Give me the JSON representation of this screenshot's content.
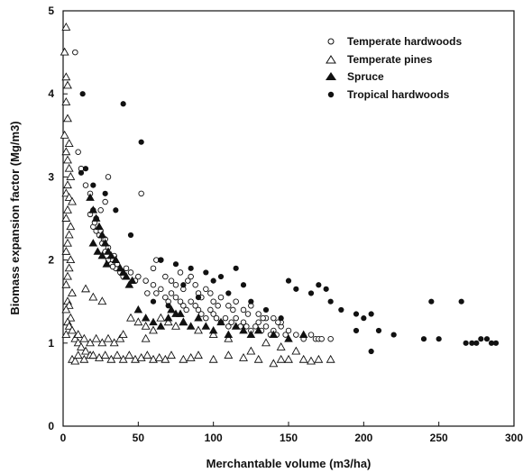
{
  "chart_data": {
    "type": "scatter",
    "xlabel": "Merchantable volume (m3/ha)",
    "ylabel": "Biomass expansion factor (Mg/m3)",
    "xlim": [
      0,
      300
    ],
    "ylim": [
      0,
      5
    ],
    "xticks": [
      "0",
      "50",
      "100",
      "150",
      "200",
      "250",
      "300"
    ],
    "yticks": [
      "0",
      "1",
      "2",
      "3",
      "4",
      "5"
    ],
    "grid": false,
    "legend_position": "top-right",
    "series": [
      {
        "name": "Temperate hardwoods",
        "marker": "open-circle",
        "points": [
          [
            8,
            4.5
          ],
          [
            30,
            3.0
          ],
          [
            52,
            2.8
          ],
          [
            10,
            3.3
          ],
          [
            12,
            3.1
          ],
          [
            15,
            2.9
          ],
          [
            18,
            2.8
          ],
          [
            20,
            2.6
          ],
          [
            22,
            2.5
          ],
          [
            25,
            2.6
          ],
          [
            28,
            2.7
          ],
          [
            20,
            2.4
          ],
          [
            24,
            2.3
          ],
          [
            26,
            2.2
          ],
          [
            28,
            2.1
          ],
          [
            30,
            2.0
          ],
          [
            32,
            1.95
          ],
          [
            35,
            1.9
          ],
          [
            38,
            1.85
          ],
          [
            40,
            1.8
          ],
          [
            22,
            2.35
          ],
          [
            27,
            2.25
          ],
          [
            33,
            1.92
          ],
          [
            45,
            1.85
          ],
          [
            50,
            1.8
          ],
          [
            55,
            1.75
          ],
          [
            60,
            1.7
          ],
          [
            62,
            1.6
          ],
          [
            65,
            1.65
          ],
          [
            68,
            1.55
          ],
          [
            70,
            1.5
          ],
          [
            72,
            1.6
          ],
          [
            75,
            1.55
          ],
          [
            78,
            1.5
          ],
          [
            80,
            1.45
          ],
          [
            82,
            1.4
          ],
          [
            85,
            1.5
          ],
          [
            88,
            1.45
          ],
          [
            90,
            1.4
          ],
          [
            92,
            1.35
          ],
          [
            95,
            1.3
          ],
          [
            98,
            1.4
          ],
          [
            100,
            1.35
          ],
          [
            102,
            1.3
          ],
          [
            105,
            1.25
          ],
          [
            108,
            1.3
          ],
          [
            110,
            1.2
          ],
          [
            112,
            1.25
          ],
          [
            115,
            1.3
          ],
          [
            118,
            1.2
          ],
          [
            120,
            1.25
          ],
          [
            122,
            1.2
          ],
          [
            125,
            1.15
          ],
          [
            128,
            1.2
          ],
          [
            130,
            1.25
          ],
          [
            132,
            1.15
          ],
          [
            135,
            1.2
          ],
          [
            138,
            1.1
          ],
          [
            140,
            1.15
          ],
          [
            142,
            1.1
          ],
          [
            145,
            1.2
          ],
          [
            148,
            1.1
          ],
          [
            150,
            1.15
          ],
          [
            155,
            1.1
          ],
          [
            160,
            1.05
          ],
          [
            165,
            1.1
          ],
          [
            168,
            1.05
          ],
          [
            170,
            1.05
          ],
          [
            172,
            1.05
          ],
          [
            178,
            1.05
          ],
          [
            60,
            1.9
          ],
          [
            62,
            2.0
          ],
          [
            65,
            2.0
          ],
          [
            68,
            1.8
          ],
          [
            72,
            1.75
          ],
          [
            75,
            1.7
          ],
          [
            80,
            1.65
          ],
          [
            85,
            1.8
          ],
          [
            88,
            1.7
          ],
          [
            90,
            1.6
          ],
          [
            95,
            1.65
          ],
          [
            98,
            1.6
          ],
          [
            100,
            1.5
          ],
          [
            105,
            1.55
          ],
          [
            110,
            1.45
          ],
          [
            115,
            1.5
          ],
          [
            120,
            1.4
          ],
          [
            125,
            1.45
          ],
          [
            130,
            1.35
          ],
          [
            135,
            1.3
          ],
          [
            140,
            1.3
          ],
          [
            145,
            1.25
          ],
          [
            78,
            1.85
          ],
          [
            83,
            1.75
          ],
          [
            92,
            1.55
          ],
          [
            103,
            1.45
          ],
          [
            113,
            1.4
          ],
          [
            123,
            1.35
          ],
          [
            133,
            1.3
          ],
          [
            143,
            1.25
          ],
          [
            18,
            2.55
          ],
          [
            21,
            2.45
          ],
          [
            25,
            2.35
          ],
          [
            28,
            2.25
          ],
          [
            30,
            2.15
          ],
          [
            34,
            2.05
          ],
          [
            36,
            1.95
          ],
          [
            42,
            1.9
          ],
          [
            48,
            1.75
          ],
          [
            56,
            1.6
          ]
        ]
      },
      {
        "name": "Temperate pines",
        "marker": "open-triangle",
        "points": [
          [
            2,
            4.8
          ],
          [
            1,
            4.5
          ],
          [
            2,
            4.2
          ],
          [
            3,
            4.1
          ],
          [
            2,
            3.9
          ],
          [
            3,
            3.7
          ],
          [
            1,
            3.5
          ],
          [
            4,
            3.4
          ],
          [
            2,
            3.3
          ],
          [
            3,
            3.2
          ],
          [
            4,
            3.1
          ],
          [
            5,
            3.0
          ],
          [
            3,
            2.9
          ],
          [
            2,
            2.8
          ],
          [
            4,
            2.75
          ],
          [
            6,
            2.7
          ],
          [
            3,
            2.6
          ],
          [
            2,
            2.5
          ],
          [
            5,
            2.4
          ],
          [
            4,
            2.3
          ],
          [
            3,
            2.2
          ],
          [
            2,
            2.1
          ],
          [
            5,
            2.0
          ],
          [
            4,
            1.9
          ],
          [
            3,
            1.8
          ],
          [
            2,
            1.7
          ],
          [
            6,
            1.6
          ],
          [
            3,
            1.5
          ],
          [
            4,
            1.45
          ],
          [
            2,
            1.4
          ],
          [
            5,
            1.3
          ],
          [
            3,
            1.25
          ],
          [
            4,
            1.2
          ],
          [
            6,
            1.15
          ],
          [
            2,
            1.1
          ],
          [
            8,
            1.05
          ],
          [
            10,
            1.0
          ],
          [
            12,
            0.95
          ],
          [
            15,
            0.9
          ],
          [
            18,
            0.85
          ],
          [
            6,
            0.8
          ],
          [
            8,
            0.78
          ],
          [
            10,
            0.85
          ],
          [
            14,
            0.8
          ],
          [
            20,
            0.85
          ],
          [
            24,
            0.82
          ],
          [
            28,
            0.85
          ],
          [
            32,
            0.8
          ],
          [
            36,
            0.85
          ],
          [
            40,
            0.8
          ],
          [
            44,
            0.85
          ],
          [
            48,
            0.8
          ],
          [
            52,
            0.82
          ],
          [
            56,
            0.85
          ],
          [
            60,
            0.8
          ],
          [
            64,
            0.82
          ],
          [
            68,
            0.8
          ],
          [
            72,
            0.85
          ],
          [
            80,
            0.8
          ],
          [
            85,
            0.82
          ],
          [
            90,
            0.85
          ],
          [
            100,
            0.8
          ],
          [
            110,
            0.85
          ],
          [
            120,
            0.82
          ],
          [
            130,
            0.8
          ],
          [
            140,
            0.75
          ],
          [
            145,
            0.8
          ],
          [
            150,
            0.8
          ],
          [
            160,
            0.8
          ],
          [
            165,
            0.78
          ],
          [
            170,
            0.8
          ],
          [
            178,
            0.8
          ],
          [
            10,
            1.1
          ],
          [
            14,
            1.05
          ],
          [
            18,
            1.0
          ],
          [
            22,
            1.05
          ],
          [
            26,
            1.0
          ],
          [
            30,
            1.05
          ],
          [
            34,
            1.0
          ],
          [
            38,
            1.05
          ],
          [
            45,
            1.3
          ],
          [
            50,
            1.25
          ],
          [
            55,
            1.2
          ],
          [
            60,
            1.15
          ],
          [
            65,
            1.3
          ],
          [
            70,
            1.25
          ],
          [
            75,
            1.2
          ],
          [
            80,
            1.25
          ],
          [
            90,
            1.15
          ],
          [
            100,
            1.1
          ],
          [
            110,
            1.05
          ],
          [
            125,
            0.9
          ],
          [
            135,
            1.0
          ],
          [
            145,
            0.95
          ],
          [
            155,
            0.9
          ],
          [
            20,
            1.55
          ],
          [
            26,
            1.5
          ],
          [
            15,
            1.65
          ],
          [
            40,
            1.1
          ],
          [
            55,
            1.05
          ]
        ]
      },
      {
        "name": "Spruce",
        "marker": "filled-triangle",
        "points": [
          [
            18,
            2.75
          ],
          [
            20,
            2.6
          ],
          [
            22,
            2.5
          ],
          [
            24,
            2.4
          ],
          [
            26,
            2.3
          ],
          [
            28,
            2.2
          ],
          [
            30,
            2.1
          ],
          [
            32,
            2.05
          ],
          [
            35,
            2.0
          ],
          [
            38,
            1.9
          ],
          [
            40,
            1.85
          ],
          [
            42,
            1.8
          ],
          [
            44,
            1.7
          ],
          [
            46,
            1.75
          ],
          [
            20,
            2.2
          ],
          [
            23,
            2.1
          ],
          [
            26,
            2.05
          ],
          [
            29,
            1.95
          ],
          [
            50,
            1.4
          ],
          [
            55,
            1.3
          ],
          [
            60,
            1.25
          ],
          [
            65,
            1.2
          ],
          [
            70,
            1.3
          ],
          [
            75,
            1.35
          ],
          [
            80,
            1.25
          ],
          [
            85,
            1.2
          ],
          [
            90,
            1.3
          ],
          [
            95,
            1.2
          ],
          [
            100,
            1.15
          ],
          [
            105,
            1.25
          ],
          [
            110,
            1.1
          ],
          [
            115,
            1.2
          ],
          [
            120,
            1.15
          ],
          [
            125,
            1.1
          ],
          [
            130,
            1.15
          ],
          [
            140,
            1.1
          ],
          [
            150,
            1.05
          ],
          [
            160,
            1.1
          ],
          [
            72,
            1.4
          ],
          [
            78,
            1.35
          ]
        ]
      },
      {
        "name": "Tropical hardwoods",
        "marker": "filled-circle",
        "points": [
          [
            13,
            4.0
          ],
          [
            40,
            3.88
          ],
          [
            52,
            3.42
          ],
          [
            15,
            3.1
          ],
          [
            20,
            2.9
          ],
          [
            28,
            2.8
          ],
          [
            35,
            2.6
          ],
          [
            12,
            3.05
          ],
          [
            45,
            2.3
          ],
          [
            65,
            2.0
          ],
          [
            75,
            1.95
          ],
          [
            85,
            1.9
          ],
          [
            95,
            1.85
          ],
          [
            105,
            1.8
          ],
          [
            115,
            1.9
          ],
          [
            150,
            1.75
          ],
          [
            170,
            1.7
          ],
          [
            175,
            1.65
          ],
          [
            165,
            1.6
          ],
          [
            178,
            1.5
          ],
          [
            185,
            1.4
          ],
          [
            195,
            1.35
          ],
          [
            200,
            1.3
          ],
          [
            205,
            1.35
          ],
          [
            210,
            1.15
          ],
          [
            220,
            1.1
          ],
          [
            240,
            1.05
          ],
          [
            245,
            1.5
          ],
          [
            250,
            1.05
          ],
          [
            265,
            1.5
          ],
          [
            268,
            1.0
          ],
          [
            272,
            1.0
          ],
          [
            275,
            1.0
          ],
          [
            278,
            1.05
          ],
          [
            282,
            1.05
          ],
          [
            285,
            1.0
          ],
          [
            288,
            1.0
          ],
          [
            205,
            0.9
          ],
          [
            195,
            1.15
          ],
          [
            155,
            1.65
          ],
          [
            125,
            1.5
          ],
          [
            135,
            1.4
          ],
          [
            145,
            1.3
          ],
          [
            110,
            1.6
          ],
          [
            90,
            1.55
          ],
          [
            60,
            1.5
          ],
          [
            70,
            1.45
          ],
          [
            80,
            1.7
          ],
          [
            100,
            1.75
          ],
          [
            120,
            1.7
          ]
        ]
      }
    ]
  }
}
